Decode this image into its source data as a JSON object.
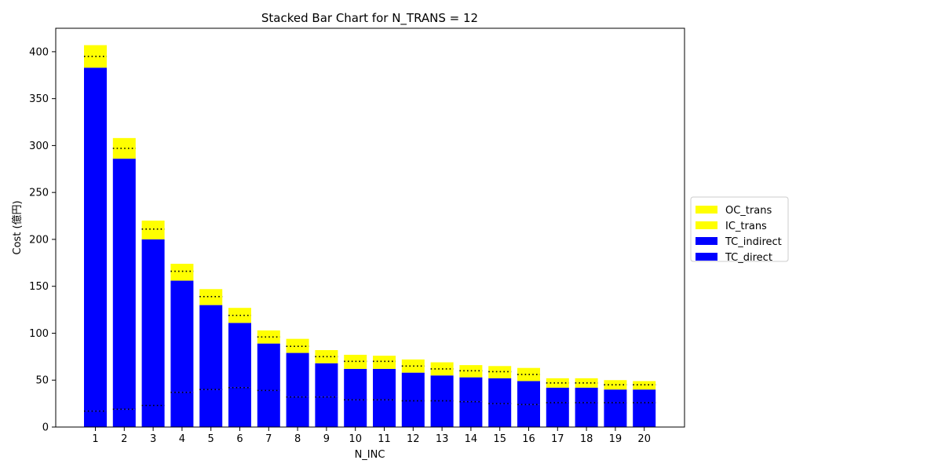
{
  "chart_data": {
    "type": "bar",
    "stacked": true,
    "title": "Stacked Bar Chart for N_TRANS = 12",
    "xlabel": "N_INC",
    "ylabel": "Cost (億円)",
    "ylim": [
      0,
      425
    ],
    "yticks": [
      0,
      50,
      100,
      150,
      200,
      250,
      300,
      350,
      400
    ],
    "categories": [
      "1",
      "2",
      "3",
      "4",
      "5",
      "6",
      "7",
      "8",
      "9",
      "10",
      "11",
      "12",
      "13",
      "14",
      "15",
      "16",
      "17",
      "18",
      "19",
      "20"
    ],
    "legend_position": "center-right, outside plot",
    "grid": false,
    "series": [
      {
        "name": "TC_direct",
        "color": "#0000ff",
        "values": [
          17,
          19,
          23,
          37,
          40,
          42,
          39,
          32,
          32,
          29,
          29,
          28,
          28,
          27,
          25,
          24,
          26,
          26,
          26,
          26
        ]
      },
      {
        "name": "TC_indirect",
        "color": "#0000ff",
        "values": [
          366,
          267,
          177,
          119,
          90,
          69,
          50,
          47,
          36,
          33,
          33,
          30,
          27,
          26,
          27,
          25,
          16,
          16,
          14,
          14
        ]
      },
      {
        "name": "IC_trans",
        "color": "#ffff00",
        "values": [
          12,
          11,
          11,
          10,
          9,
          8,
          7,
          7,
          7,
          8,
          8,
          7,
          7,
          7,
          7,
          7,
          5,
          5,
          5,
          5
        ]
      },
      {
        "name": "OC_trans",
        "color": "#ffff00",
        "values": [
          12,
          11,
          9,
          8,
          8,
          8,
          7,
          8,
          7,
          7,
          6,
          7,
          7,
          6,
          6,
          7,
          5,
          5,
          5,
          4
        ]
      }
    ]
  }
}
